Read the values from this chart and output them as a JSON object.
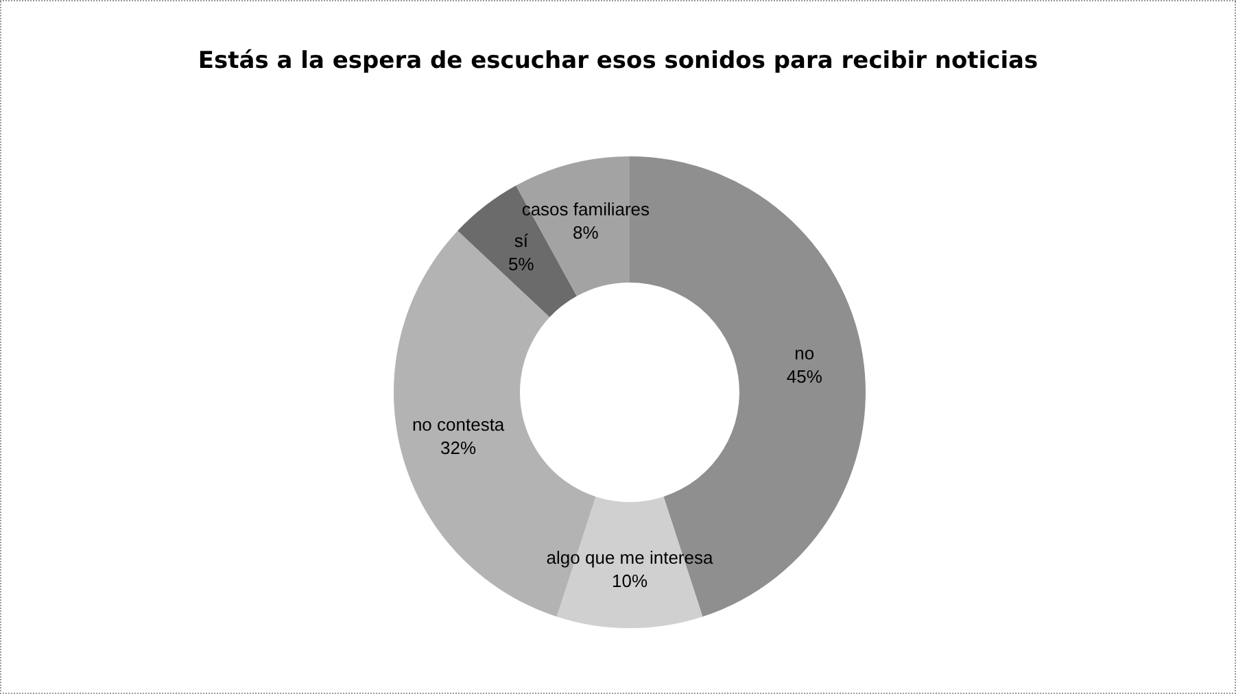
{
  "chart_data": {
    "type": "donut",
    "title": "Estás a la espera de escuchar esos sonidos para recibir noticias",
    "categories": [
      "no",
      "algo que me interesa",
      "no contesta",
      "sí",
      "casos familiares"
    ],
    "values": [
      45,
      10,
      32,
      5,
      8
    ],
    "value_labels": [
      "45%",
      "10%",
      "32%",
      "5%",
      "8%"
    ],
    "colors": [
      "#8f8f8f",
      "#d0d0d0",
      "#b3b3b3",
      "#6b6b6b",
      "#a3a3a3"
    ],
    "legend": false
  }
}
